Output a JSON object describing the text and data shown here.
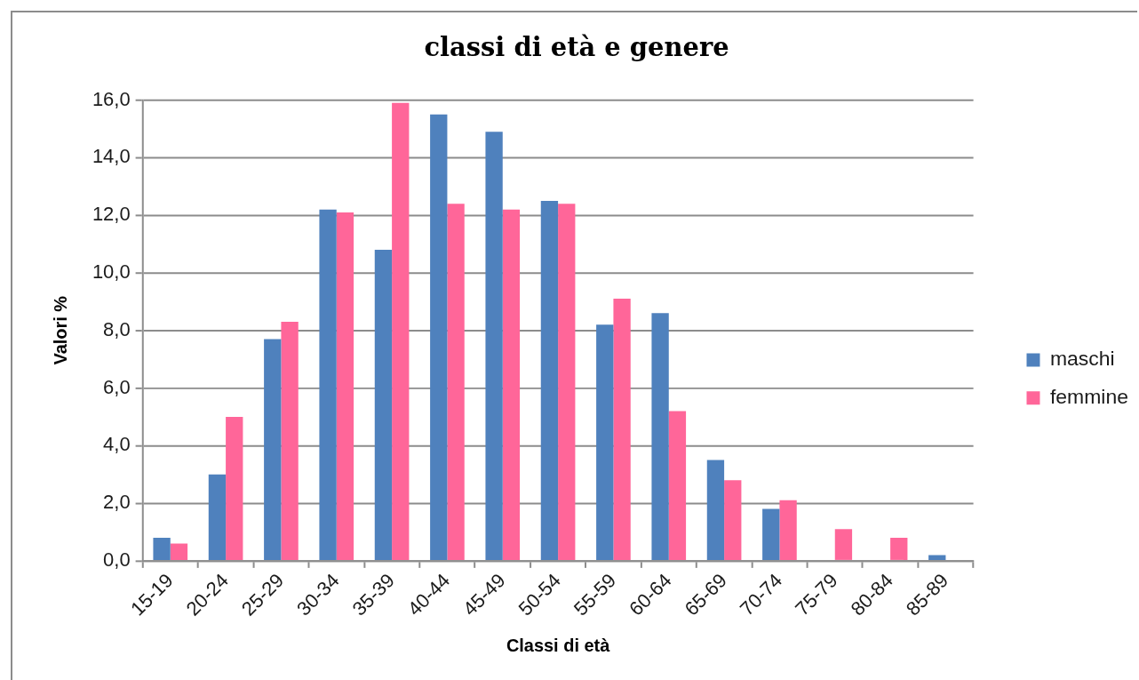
{
  "chart_data": {
    "type": "bar",
    "title": "classi di età e genere",
    "xlabel": "Classi di età",
    "ylabel": "Valori %",
    "categories": [
      "15-19",
      "20-24",
      "25-29",
      "30-34",
      "35-39",
      "40-44",
      "45-49",
      "50-54",
      "55-59",
      "60-64",
      "65-69",
      "70-74",
      "75-79",
      "80-84",
      "85-89"
    ],
    "series": [
      {
        "name": "maschi",
        "color": "#4f81bd",
        "values": [
          0.8,
          3.0,
          7.7,
          12.2,
          10.8,
          15.5,
          14.9,
          12.5,
          8.2,
          8.6,
          3.5,
          1.8,
          0.0,
          0.0,
          0.2
        ]
      },
      {
        "name": "femmine",
        "color": "#ff6699",
        "values": [
          0.6,
          5.0,
          8.3,
          12.1,
          15.9,
          12.4,
          12.2,
          12.4,
          9.1,
          5.2,
          2.8,
          2.1,
          1.1,
          0.8,
          0.0
        ]
      }
    ],
    "ylim": [
      0,
      16
    ],
    "yticks": [
      {
        "value": 0,
        "label": "0,0"
      },
      {
        "value": 2,
        "label": "2,0"
      },
      {
        "value": 4,
        "label": "4,0"
      },
      {
        "value": 6,
        "label": "6,0"
      },
      {
        "value": 8,
        "label": "8,0"
      },
      {
        "value": 10,
        "label": "10,0"
      },
      {
        "value": 12,
        "label": "12,0"
      },
      {
        "value": 14,
        "label": "14,0"
      },
      {
        "value": 16,
        "label": "16,0"
      }
    ],
    "grid": "y",
    "legend": "right"
  }
}
